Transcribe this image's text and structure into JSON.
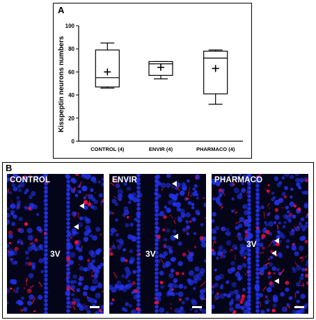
{
  "panel_a": {
    "label": "A"
  },
  "panel_b": {
    "label": "B"
  },
  "chart_data": {
    "type": "box",
    "ylabel": "Kisspeptin neurons numbers",
    "ylim": [
      0,
      100
    ],
    "yticks": [
      0,
      20,
      40,
      60,
      80,
      100
    ],
    "categories": [
      "CONTROL (4)",
      "ENVIR (4)",
      "PHARMACO (4)"
    ],
    "boxes": [
      {
        "category": "CONTROL (4)",
        "min": 46,
        "q1": 47,
        "median": 55,
        "q3": 79,
        "max": 85,
        "mean": 60
      },
      {
        "category": "ENVIR (4)",
        "min": 54,
        "q1": 57,
        "median": 67,
        "q3": 69,
        "max": 69,
        "mean": 64
      },
      {
        "category": "PHARMACO (4)",
        "min": 32,
        "q1": 41,
        "median": 72,
        "q3": 78,
        "max": 79,
        "mean": 63
      }
    ],
    "mean_marker": "+",
    "grid": false
  },
  "micrographs": [
    {
      "label": "CONTROL",
      "ventricle": "3V"
    },
    {
      "label": "ENVIR",
      "ventricle": "3V"
    },
    {
      "label": "PHARMACO",
      "ventricle": "3V"
    }
  ],
  "colors": {
    "nuclei": "#2233ee",
    "kisspeptin": "#ee1144",
    "arrowhead": "#ffffff",
    "background": "#05051a"
  }
}
